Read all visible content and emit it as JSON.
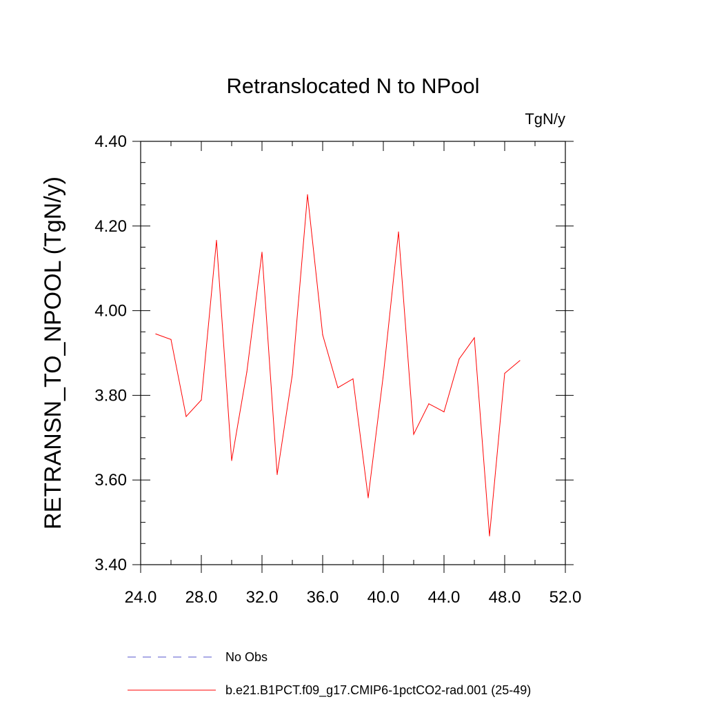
{
  "chart_data": {
    "type": "line",
    "title": "Retranslocated N to NPool",
    "units": "TgN/y",
    "xlabel": "",
    "ylabel": "RETRANSN_TO_NPOOL  (TgN/y)",
    "xlim": [
      24,
      52
    ],
    "ylim": [
      3.4,
      4.4
    ],
    "x_ticks": [
      24,
      28,
      32,
      36,
      40,
      44,
      48,
      52
    ],
    "x_tick_labels": [
      "24.0",
      "28.0",
      "32.0",
      "36.0",
      "40.0",
      "44.0",
      "48.0",
      "52.0"
    ],
    "y_ticks": [
      3.4,
      3.6,
      3.8,
      4.0,
      4.2,
      4.4
    ],
    "y_tick_labels": [
      "3.40",
      "3.60",
      "3.80",
      "4.00",
      "4.20",
      "4.40"
    ],
    "grid": false,
    "legend_position": "bottom",
    "series": [
      {
        "name": "No Obs",
        "color": "#5555cc",
        "dash": "dashed",
        "x": [],
        "y": []
      },
      {
        "name": "b.e21.B1PCT.f09_g17.CMIP6-1pctCO2-rad.001 (25-49)",
        "color": "#ff0000",
        "dash": "solid",
        "x": [
          25,
          26,
          27,
          28,
          29,
          30,
          31,
          32,
          33,
          34,
          35,
          36,
          37,
          38,
          39,
          40,
          41,
          42,
          43,
          44,
          45,
          46,
          47,
          48,
          49
        ],
        "y": [
          3.945,
          3.932,
          3.75,
          3.789,
          4.166,
          3.646,
          3.855,
          4.138,
          3.613,
          3.849,
          4.274,
          3.943,
          3.818,
          3.839,
          3.558,
          3.848,
          4.186,
          3.708,
          3.78,
          3.761,
          3.886,
          3.936,
          3.468,
          3.852,
          3.882
        ]
      }
    ]
  }
}
